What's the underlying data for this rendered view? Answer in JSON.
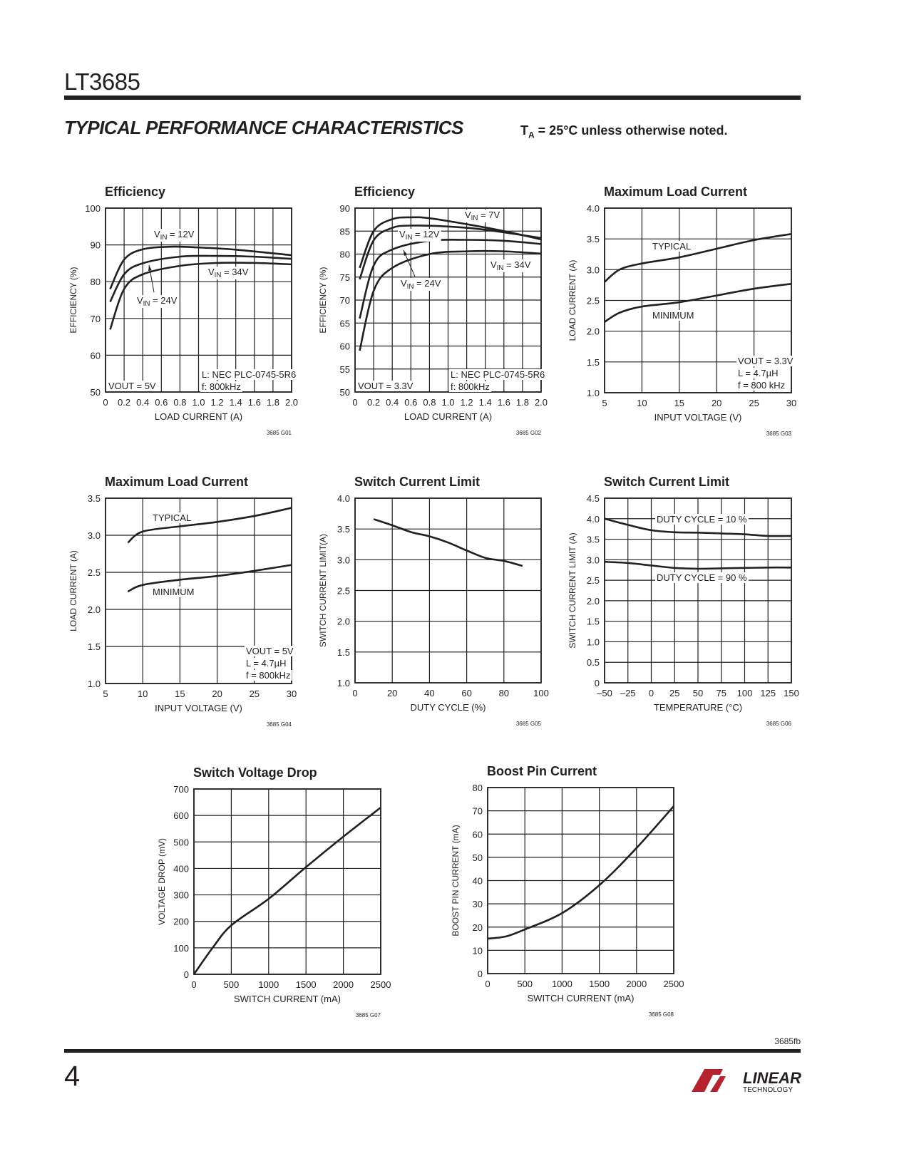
{
  "header": {
    "part_number": "LT3685",
    "section_title": "TYPICAL PERFORMANCE CHARACTERISTICS",
    "condition_prefix": "T",
    "condition_sub": "A",
    "condition_rest": " = 25°C unless otherwise noted."
  },
  "footer": {
    "doc_id": "3685fb",
    "page_number": "4",
    "logo_text": "LINEAR",
    "logo_subtext": "TECHNOLOGY"
  },
  "chart_data": [
    {
      "type": "line",
      "title": "Efficiency",
      "xlabel": "LOAD CURRENT (A)",
      "ylabel": "EFFICIENCY (%)",
      "xlim": [
        0,
        2
      ],
      "ylim": [
        50,
        100
      ],
      "grid": true,
      "code": "3685 G01",
      "xticks": [
        "0",
        "0.2",
        "0.4",
        "0.6",
        "0.8",
        "1.0",
        "1.2",
        "1.4",
        "1.6",
        "1.8",
        "2.0"
      ],
      "yticks": [
        "50",
        "60",
        "70",
        "80",
        "90",
        "100"
      ],
      "series": [
        {
          "name": "VIN = 12V",
          "points": [
            [
              0.05,
              78
            ],
            [
              0.2,
              86
            ],
            [
              0.4,
              88.8
            ],
            [
              0.7,
              89.5
            ],
            [
              1.0,
              89.3
            ],
            [
              1.4,
              88.7
            ],
            [
              2.0,
              87.2
            ]
          ]
        },
        {
          "name": "VIN = 24V",
          "points": [
            [
              0.05,
              74.5
            ],
            [
              0.2,
              82
            ],
            [
              0.4,
              85
            ],
            [
              0.8,
              86.8
            ],
            [
              1.2,
              87
            ],
            [
              1.6,
              86.8
            ],
            [
              2.0,
              86.2
            ]
          ]
        },
        {
          "name": "VIN = 34V",
          "points": [
            [
              0.05,
              67
            ],
            [
              0.2,
              78
            ],
            [
              0.4,
              82
            ],
            [
              0.8,
              84.3
            ],
            [
              1.2,
              85.1
            ],
            [
              1.6,
              85.1
            ],
            [
              2.0,
              84.7
            ]
          ]
        }
      ],
      "annotations": [
        "VOUT = 5V",
        "L: NEC PLC-0745-5R6",
        "f: 800kHz"
      ]
    },
    {
      "type": "line",
      "title": "Efficiency",
      "xlabel": "LOAD CURRENT (A)",
      "ylabel": "EFFICIENCY (%)",
      "xlim": [
        0,
        2
      ],
      "ylim": [
        50,
        90
      ],
      "grid": true,
      "code": "3685 G02",
      "xticks": [
        "0",
        "0.2",
        "0.4",
        "0.6",
        "0.8",
        "1.0",
        "1.2",
        "1.4",
        "1.6",
        "1.8",
        "2.0"
      ],
      "yticks": [
        "50",
        "55",
        "60",
        "65",
        "70",
        "75",
        "80",
        "85",
        "90"
      ],
      "series": [
        {
          "name": "VIN = 7V",
          "points": [
            [
              0.05,
              77
            ],
            [
              0.2,
              85
            ],
            [
              0.4,
              87.6
            ],
            [
              0.6,
              88
            ],
            [
              0.8,
              87.8
            ],
            [
              1.2,
              86.5
            ],
            [
              1.6,
              85
            ],
            [
              2.0,
              83.2
            ]
          ]
        },
        {
          "name": "VIN = 12V",
          "points": [
            [
              0.05,
              74.5
            ],
            [
              0.2,
              83
            ],
            [
              0.4,
              85.7
            ],
            [
              0.6,
              86.2
            ],
            [
              1.0,
              86
            ],
            [
              1.4,
              85.3
            ],
            [
              2.0,
              83.5
            ]
          ]
        },
        {
          "name": "VIN = 24V",
          "points": [
            [
              0.05,
              66
            ],
            [
              0.2,
              77.5
            ],
            [
              0.4,
              81
            ],
            [
              0.8,
              82.9
            ],
            [
              1.2,
              83.1
            ],
            [
              1.6,
              82.9
            ],
            [
              2.0,
              82.2
            ]
          ]
        },
        {
          "name": "VIN = 34V",
          "points": [
            [
              0.05,
              59
            ],
            [
              0.2,
              72
            ],
            [
              0.4,
              77
            ],
            [
              0.8,
              80
            ],
            [
              1.2,
              80.6
            ],
            [
              1.6,
              80.6
            ],
            [
              2.0,
              80.1
            ]
          ]
        }
      ],
      "annotations": [
        "VOUT = 3.3V",
        "L: NEC PLC-0745-5R6",
        "f: 800kHz"
      ]
    },
    {
      "type": "line",
      "title": "Maximum Load Current",
      "xlabel": "INPUT VOLTAGE (V)",
      "ylabel": "LOAD CURRENT (A)",
      "xlim": [
        5,
        30
      ],
      "ylim": [
        1.0,
        4.0
      ],
      "grid": true,
      "code": "3685 G03",
      "xticks": [
        "5",
        "10",
        "15",
        "20",
        "25",
        "30"
      ],
      "yticks": [
        "1.0",
        "1.5",
        "2.0",
        "2.5",
        "3.0",
        "3.5",
        "4.0"
      ],
      "series": [
        {
          "name": "TYPICAL",
          "points": [
            [
              5,
              2.8
            ],
            [
              7,
              3.0
            ],
            [
              10,
              3.1
            ],
            [
              15,
              3.2
            ],
            [
              20,
              3.34
            ],
            [
              25,
              3.48
            ],
            [
              30,
              3.58
            ]
          ]
        },
        {
          "name": "MINIMUM",
          "points": [
            [
              5,
              2.15
            ],
            [
              7,
              2.3
            ],
            [
              10,
              2.4
            ],
            [
              15,
              2.47
            ],
            [
              20,
              2.58
            ],
            [
              25,
              2.69
            ],
            [
              30,
              2.77
            ]
          ]
        }
      ],
      "annotations": [
        "VOUT = 3.3V",
        "L = 4.7µH",
        "f = 800 kHz"
      ]
    },
    {
      "type": "line",
      "title": "Maximum Load Current",
      "xlabel": "INPUT VOLTAGE (V)",
      "ylabel": "LOAD CURRENT (A)",
      "xlim": [
        5,
        30
      ],
      "ylim": [
        1.0,
        3.5
      ],
      "grid": true,
      "code": "3685 G04",
      "xticks": [
        "5",
        "10",
        "15",
        "20",
        "25",
        "30"
      ],
      "yticks": [
        "1.0",
        "1.5",
        "2.0",
        "2.5",
        "3.0",
        "3.5"
      ],
      "series": [
        {
          "name": "TYPICAL",
          "points": [
            [
              8,
              2.9
            ],
            [
              10,
              3.05
            ],
            [
              15,
              3.12
            ],
            [
              20,
              3.18
            ],
            [
              25,
              3.26
            ],
            [
              30,
              3.37
            ]
          ]
        },
        {
          "name": "MINIMUM",
          "points": [
            [
              8,
              2.24
            ],
            [
              10,
              2.33
            ],
            [
              15,
              2.4
            ],
            [
              20,
              2.45
            ],
            [
              25,
              2.52
            ],
            [
              30,
              2.6
            ]
          ]
        }
      ],
      "annotations": [
        "VOUT = 5V",
        "L = 4.7µH",
        "f = 800kHz"
      ]
    },
    {
      "type": "line",
      "title": "Switch Current Limit",
      "xlabel": "DUTY CYCLE (%)",
      "ylabel": "SWITCH CURRENT  LIMIT(A)",
      "xlim": [
        0,
        100
      ],
      "ylim": [
        1.0,
        4.0
      ],
      "grid": true,
      "code": "3685 G05",
      "xticks": [
        "0",
        "20",
        "40",
        "60",
        "80",
        "100"
      ],
      "yticks": [
        "1.0",
        "1.5",
        "2.0",
        "2.5",
        "3.0",
        "3.5",
        "4.0"
      ],
      "series": [
        {
          "points": [
            [
              10,
              3.66
            ],
            [
              20,
              3.56
            ],
            [
              30,
              3.45
            ],
            [
              40,
              3.38
            ],
            [
              50,
              3.28
            ],
            [
              60,
              3.15
            ],
            [
              70,
              3.03
            ],
            [
              80,
              2.98
            ],
            [
              90,
              2.9
            ]
          ]
        }
      ],
      "annotations": []
    },
    {
      "type": "line",
      "title": "Switch Current Limit",
      "xlabel": "TEMPERATURE (°C)",
      "ylabel": "SWITCH CURRENT LIMIT (A)",
      "xlim": [
        -50,
        150
      ],
      "ylim": [
        0,
        4.5
      ],
      "grid": true,
      "code": "3685 G06",
      "xticks": [
        "–50",
        "–25",
        "0",
        "25",
        "50",
        "75",
        "100",
        "125",
        "150"
      ],
      "yticks": [
        "0",
        "0.5",
        "1.0",
        "1.5",
        "2.0",
        "2.5",
        "3.0",
        "3.5",
        "4.0",
        "4.5"
      ],
      "series": [
        {
          "name": "DUTY CYCLE = 10 %",
          "points": [
            [
              -50,
              4.0
            ],
            [
              -25,
              3.85
            ],
            [
              0,
              3.72
            ],
            [
              25,
              3.67
            ],
            [
              50,
              3.66
            ],
            [
              75,
              3.64
            ],
            [
              100,
              3.62
            ],
            [
              125,
              3.58
            ],
            [
              150,
              3.58
            ]
          ]
        },
        {
          "name": "DUTY CYCLE = 90 %",
          "points": [
            [
              -50,
              2.95
            ],
            [
              -25,
              2.92
            ],
            [
              0,
              2.86
            ],
            [
              25,
              2.8
            ],
            [
              50,
              2.78
            ],
            [
              75,
              2.79
            ],
            [
              100,
              2.8
            ],
            [
              125,
              2.81
            ],
            [
              150,
              2.81
            ]
          ]
        }
      ],
      "annotations": []
    },
    {
      "type": "line",
      "title": "Switch Voltage Drop",
      "xlabel": "SWITCH CURRENT (mA)",
      "ylabel": "VOLTAGE DROP (mV)",
      "xlim": [
        0,
        2500
      ],
      "ylim": [
        0,
        700
      ],
      "grid": true,
      "code": "3685 G07",
      "xticks": [
        "0",
        "500",
        "1000",
        "1500",
        "2000",
        "2500"
      ],
      "yticks": [
        "0",
        "100",
        "200",
        "300",
        "400",
        "500",
        "600",
        "700"
      ],
      "series": [
        {
          "points": [
            [
              0,
              0
            ],
            [
              250,
              100
            ],
            [
              500,
              185
            ],
            [
              1000,
              285
            ],
            [
              1500,
              405
            ],
            [
              2000,
              520
            ],
            [
              2500,
              630
            ]
          ]
        }
      ],
      "annotations": []
    },
    {
      "type": "line",
      "title": "Boost Pin Current",
      "xlabel": "SWITCH CURRENT (mA)",
      "ylabel": "BOOST PIN CURRENT (mA)",
      "xlim": [
        0,
        2500
      ],
      "ylim": [
        0,
        80
      ],
      "grid": true,
      "code": "3685 G08",
      "xticks": [
        "0",
        "500",
        "1000",
        "1500",
        "2000",
        "2500"
      ],
      "yticks": [
        "0",
        "10",
        "20",
        "30",
        "40",
        "50",
        "60",
        "70",
        "80"
      ],
      "series": [
        {
          "points": [
            [
              0,
              15
            ],
            [
              250,
              16
            ],
            [
              500,
              19
            ],
            [
              1000,
              26
            ],
            [
              1500,
              38
            ],
            [
              2000,
              54
            ],
            [
              2500,
              72
            ]
          ]
        }
      ],
      "annotations": []
    }
  ]
}
